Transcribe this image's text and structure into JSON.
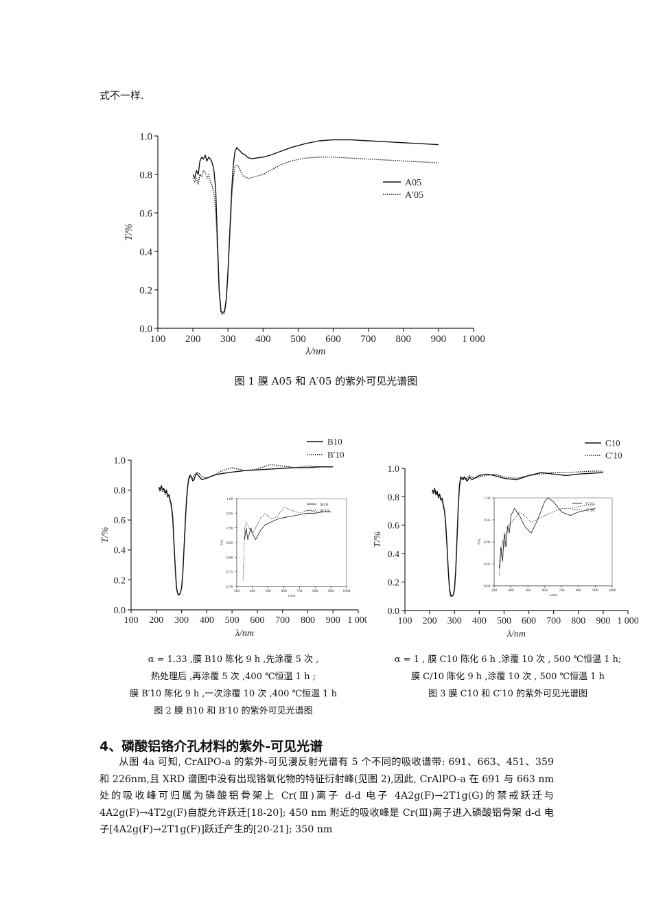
{
  "lead_text": "式不一样.",
  "figure1": {
    "caption": "图 1    膜 A05 和 A′05 的紫外可见光谱图",
    "ylabel": "T/%",
    "xlabel": "λ/nm"
  },
  "figure2": {
    "ylabel": "T/%",
    "xlabel": "λ/nm",
    "notes": [
      "α = 1.33 ,膜 B10 陈化 9 h ,先涂覆 5 次 ,",
      "热处理后 ,再涂覆 5 次 ,400  ℃恒温 1 h ;",
      "膜 B′10 陈化 9 h ,一次涂覆 10 次 ,400  ℃恒温 1 h",
      "图 2    膜 B10 和 B′10 的紫外可见光谱图"
    ]
  },
  "figure3": {
    "ylabel": "T/%",
    "xlabel": "λ/nm",
    "notes": [
      "α = 1 , 膜 C10 陈化 6 h ,涂覆 10 次 , 500  ℃恒温 1 h;",
      "膜 C/10 陈化 9 h ,涂覆 10 次 , 500 ℃恒温 1 h",
      "图 3    膜 C10 和 C′10 的紫外可见光谱图"
    ]
  },
  "section_heading": "4、磷酸铝铬介孔材料的紫外-可见光谱",
  "paragraph": "从图 4a 可知, CrAlPO-a 的紫外-可见漫反射光谱有 5 个不同的吸收谱带: 691、663、451、359 和 226nm,且 XRD 谱图中没有出现铬氧化物的特征衍射峰(见图 2),因此, CrAlPO-a 在 691 与 663 nm 处的吸收峰可归属为磷酸铝骨架上 Cr(Ⅲ)离子 d-d 电子 4A2g(F)→2T1g(G)的禁戒跃迁与 4A2g(F)→4T2g(F)自旋允许跃迁[18-20]; 450 nm 附近的吸收峰是 Cr(Ⅲ)离子进入磷酸铝骨架 d-d 电子[4A2g(F)→2T1g(F)]跃迁产生的[20-21]; 350 nm",
  "chart_data": [
    {
      "id": "fig1",
      "type": "line",
      "xlabel": "λ/nm",
      "ylabel": "T/%",
      "xlim": [
        100,
        1000
      ],
      "ylim": [
        0,
        1.0
      ],
      "x_ticks": [
        "100",
        "200",
        "300",
        "400",
        "500",
        "600",
        "700",
        "800",
        "900",
        "1 000"
      ],
      "y_ticks": [
        "0.0",
        "0.2",
        "0.4",
        "0.6",
        "0.8",
        "1.0"
      ],
      "legend_position": "center-right",
      "series": [
        {
          "name": "A05",
          "style": "solid",
          "x": [
            200,
            205,
            210,
            215,
            220,
            225,
            230,
            235,
            240,
            245,
            250,
            255,
            260,
            265,
            270,
            275,
            280,
            285,
            290,
            295,
            300,
            305,
            310,
            315,
            320,
            325,
            330,
            335,
            340,
            345,
            350,
            355,
            360,
            370,
            380,
            400,
            420,
            450,
            480,
            520,
            560,
            600,
            650,
            700,
            750,
            800,
            850,
            900
          ],
          "y": [
            0.8,
            0.78,
            0.82,
            0.8,
            0.87,
            0.89,
            0.88,
            0.9,
            0.87,
            0.89,
            0.88,
            0.86,
            0.82,
            0.72,
            0.45,
            0.2,
            0.09,
            0.08,
            0.09,
            0.15,
            0.3,
            0.5,
            0.7,
            0.85,
            0.92,
            0.94,
            0.93,
            0.92,
            0.91,
            0.905,
            0.9,
            0.89,
            0.885,
            0.882,
            0.885,
            0.89,
            0.9,
            0.92,
            0.94,
            0.96,
            0.975,
            0.98,
            0.98,
            0.975,
            0.97,
            0.965,
            0.96,
            0.955
          ]
        },
        {
          "name": "A′05",
          "style": "dotted",
          "x": [
            200,
            205,
            210,
            215,
            220,
            225,
            230,
            235,
            240,
            245,
            250,
            255,
            260,
            265,
            270,
            275,
            280,
            285,
            290,
            295,
            300,
            305,
            310,
            315,
            320,
            325,
            330,
            335,
            340,
            345,
            350,
            360,
            370,
            380,
            400,
            420,
            450,
            480,
            520,
            560,
            600,
            650,
            700,
            750,
            800,
            850,
            900
          ],
          "y": [
            0.78,
            0.76,
            0.78,
            0.75,
            0.8,
            0.79,
            0.82,
            0.81,
            0.78,
            0.8,
            0.76,
            0.74,
            0.7,
            0.62,
            0.4,
            0.18,
            0.08,
            0.07,
            0.08,
            0.14,
            0.28,
            0.48,
            0.66,
            0.78,
            0.84,
            0.85,
            0.84,
            0.82,
            0.8,
            0.79,
            0.785,
            0.78,
            0.785,
            0.79,
            0.8,
            0.82,
            0.85,
            0.87,
            0.885,
            0.89,
            0.89,
            0.885,
            0.88,
            0.875,
            0.87,
            0.865,
            0.86
          ]
        }
      ]
    },
    {
      "id": "fig2",
      "type": "line",
      "xlabel": "λ/nm",
      "ylabel": "T/%",
      "xlim": [
        100,
        1000
      ],
      "ylim": [
        0,
        1.0
      ],
      "x_ticks": [
        "100",
        "200",
        "300",
        "400",
        "500",
        "600",
        "700",
        "800",
        "900",
        "1 000"
      ],
      "y_ticks": [
        "0.0",
        "0.2",
        "0.4",
        "0.6",
        "0.8",
        "1.0"
      ],
      "legend_position": "top-right",
      "series": [
        {
          "name": "B10",
          "style": "solid",
          "x": [
            210,
            215,
            220,
            225,
            230,
            235,
            240,
            245,
            250,
            255,
            260,
            265,
            270,
            275,
            280,
            285,
            290,
            295,
            300,
            305,
            310,
            315,
            320,
            325,
            330,
            335,
            340,
            345,
            350,
            355,
            360,
            370,
            380,
            400,
            430,
            460,
            500,
            550,
            600,
            650,
            700,
            750,
            800,
            850,
            900
          ],
          "y": [
            0.82,
            0.8,
            0.83,
            0.8,
            0.81,
            0.78,
            0.8,
            0.76,
            0.77,
            0.73,
            0.7,
            0.62,
            0.45,
            0.28,
            0.15,
            0.11,
            0.1,
            0.11,
            0.15,
            0.25,
            0.42,
            0.6,
            0.75,
            0.84,
            0.89,
            0.9,
            0.88,
            0.86,
            0.87,
            0.9,
            0.91,
            0.89,
            0.87,
            0.88,
            0.9,
            0.91,
            0.92,
            0.93,
            0.935,
            0.94,
            0.945,
            0.95,
            0.95,
            0.955,
            0.955
          ]
        },
        {
          "name": "B′10",
          "style": "dotted",
          "x": [
            210,
            215,
            220,
            225,
            230,
            235,
            240,
            245,
            250,
            255,
            260,
            265,
            270,
            275,
            280,
            285,
            290,
            295,
            300,
            305,
            310,
            315,
            320,
            325,
            330,
            335,
            340,
            345,
            350,
            360,
            370,
            380,
            400,
            430,
            460,
            500,
            550,
            600,
            650,
            700,
            750,
            800,
            850,
            900
          ],
          "y": [
            0.81,
            0.79,
            0.82,
            0.79,
            0.8,
            0.77,
            0.79,
            0.75,
            0.76,
            0.72,
            0.68,
            0.6,
            0.43,
            0.26,
            0.14,
            0.1,
            0.1,
            0.11,
            0.14,
            0.24,
            0.4,
            0.58,
            0.73,
            0.83,
            0.88,
            0.89,
            0.88,
            0.88,
            0.9,
            0.92,
            0.91,
            0.89,
            0.88,
            0.9,
            0.93,
            0.95,
            0.93,
            0.94,
            0.97,
            0.96,
            0.95,
            0.96,
            0.955,
            0.955
          ]
        }
      ],
      "inset": {
        "xlim": [
          300,
          1000
        ],
        "ylim": [
          0.7,
          1.0
        ],
        "x_ticks": [
          "300",
          "400",
          "500",
          "600",
          "700",
          "800",
          "900",
          "1000"
        ],
        "y_ticks": [
          "0.70",
          "0.75",
          "0.80",
          "0.85",
          "0.90",
          "0.95",
          "1.00"
        ],
        "series": [
          {
            "name": "B10",
            "style": "solid",
            "x": [
              350,
              360,
              370,
              380,
              390,
              400,
              420,
              450,
              480,
              520,
              560,
              600,
              650,
              700,
              750,
              800,
              850,
              900
            ],
            "y": [
              0.86,
              0.9,
              0.86,
              0.88,
              0.9,
              0.88,
              0.86,
              0.89,
              0.91,
              0.92,
              0.93,
              0.935,
              0.94,
              0.945,
              0.95,
              0.95,
              0.955,
              0.955
            ]
          },
          {
            "name": "B′10",
            "style": "dotted",
            "x": [
              340,
              345,
              350,
              360,
              370,
              380,
              400,
              420,
              450,
              480,
              520,
              560,
              600,
              650,
              700,
              750,
              800,
              850,
              900
            ],
            "y": [
              0.72,
              0.8,
              0.9,
              0.92,
              0.91,
              0.9,
              0.88,
              0.9,
              0.93,
              0.95,
              0.93,
              0.94,
              0.97,
              0.96,
              0.95,
              0.96,
              0.955,
              0.955,
              0.955
            ]
          }
        ]
      }
    },
    {
      "id": "fig3",
      "type": "line",
      "xlabel": "λ/nm",
      "ylabel": "T/%",
      "xlim": [
        100,
        1000
      ],
      "ylim": [
        0,
        1.0
      ],
      "x_ticks": [
        "100",
        "200",
        "300",
        "400",
        "500",
        "600",
        "700",
        "800",
        "900",
        "1 000"
      ],
      "y_ticks": [
        "0.0",
        "0.2",
        "0.4",
        "0.6",
        "0.8",
        "1.0"
      ],
      "legend_position": "top-right",
      "series": [
        {
          "name": "C10",
          "style": "solid",
          "x": [
            210,
            215,
            220,
            225,
            230,
            235,
            240,
            245,
            250,
            255,
            260,
            265,
            270,
            275,
            280,
            285,
            290,
            295,
            300,
            305,
            310,
            315,
            320,
            325,
            330,
            335,
            340,
            345,
            350,
            355,
            360,
            370,
            380,
            400,
            430,
            460,
            500,
            550,
            600,
            650,
            700,
            750,
            800,
            850,
            900
          ],
          "y": [
            0.85,
            0.83,
            0.86,
            0.82,
            0.84,
            0.8,
            0.82,
            0.78,
            0.79,
            0.74,
            0.7,
            0.6,
            0.45,
            0.28,
            0.15,
            0.11,
            0.1,
            0.11,
            0.15,
            0.28,
            0.5,
            0.72,
            0.88,
            0.94,
            0.93,
            0.92,
            0.94,
            0.93,
            0.91,
            0.92,
            0.94,
            0.92,
            0.93,
            0.95,
            0.96,
            0.95,
            0.93,
            0.92,
            0.95,
            0.97,
            0.96,
            0.95,
            0.96,
            0.965,
            0.97
          ]
        },
        {
          "name": "C′10",
          "style": "dotted",
          "x": [
            210,
            215,
            220,
            225,
            230,
            235,
            240,
            245,
            250,
            255,
            260,
            265,
            270,
            275,
            280,
            285,
            290,
            295,
            300,
            305,
            310,
            315,
            320,
            325,
            330,
            335,
            340,
            345,
            350,
            360,
            370,
            380,
            400,
            430,
            460,
            500,
            550,
            600,
            650,
            700,
            750,
            800,
            850,
            900
          ],
          "y": [
            0.84,
            0.82,
            0.85,
            0.81,
            0.83,
            0.79,
            0.81,
            0.77,
            0.78,
            0.73,
            0.69,
            0.58,
            0.44,
            0.27,
            0.14,
            0.1,
            0.1,
            0.11,
            0.14,
            0.27,
            0.48,
            0.7,
            0.86,
            0.92,
            0.93,
            0.94,
            0.93,
            0.92,
            0.93,
            0.95,
            0.94,
            0.93,
            0.94,
            0.95,
            0.96,
            0.94,
            0.93,
            0.95,
            0.96,
            0.97,
            0.97,
            0.975,
            0.98,
            0.98
          ]
        }
      ],
      "inset": {
        "xlim": [
          300,
          1000
        ],
        "ylim": [
          0.75,
          1.0
        ],
        "x_ticks": [
          "300",
          "400",
          "500",
          "600",
          "700",
          "800",
          "900",
          "1000"
        ],
        "y_ticks": [
          "0.80",
          "0.85",
          "0.90",
          "0.95",
          "1.00"
        ],
        "series": [
          {
            "name": "C10",
            "style": "solid",
            "x": [
              330,
              340,
              350,
              360,
              370,
              380,
              390,
              400,
              420,
              450,
              480,
              520,
              560,
              600,
              620,
              650,
              700,
              750,
              800,
              850,
              900
            ],
            "y": [
              0.8,
              0.86,
              0.82,
              0.9,
              0.86,
              0.92,
              0.9,
              0.95,
              0.97,
              0.95,
              0.92,
              0.9,
              0.94,
              0.99,
              1.0,
              0.99,
              0.96,
              0.95,
              0.96,
              0.965,
              0.97
            ]
          },
          {
            "name": "C′10",
            "style": "dotted",
            "x": [
              330,
              340,
              350,
              360,
              370,
              380,
              400,
              420,
              450,
              480,
              520,
              560,
              600,
              650,
              700,
              750,
              800,
              850,
              900
            ],
            "y": [
              0.78,
              0.83,
              0.88,
              0.86,
              0.9,
              0.92,
              0.93,
              0.94,
              0.96,
              0.95,
              0.93,
              0.94,
              0.95,
              0.96,
              0.97,
              0.97,
              0.975,
              0.98,
              0.98
            ]
          }
        ]
      }
    }
  ]
}
